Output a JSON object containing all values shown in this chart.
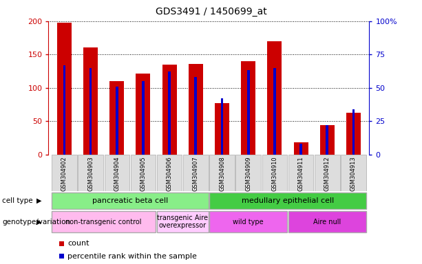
{
  "title": "GDS3491 / 1450699_at",
  "samples": [
    "GSM304902",
    "GSM304903",
    "GSM304904",
    "GSM304905",
    "GSM304906",
    "GSM304907",
    "GSM304908",
    "GSM304909",
    "GSM304910",
    "GSM304911",
    "GSM304912",
    "GSM304913"
  ],
  "counts": [
    198,
    161,
    110,
    121,
    135,
    136,
    77,
    140,
    170,
    18,
    44,
    63
  ],
  "percentiles": [
    67,
    65,
    51,
    55,
    62,
    58,
    42,
    63,
    65,
    8,
    22,
    34
  ],
  "bar_color": "#cc0000",
  "pct_color": "#0000cc",
  "ylim_left": [
    0,
    200
  ],
  "ylim_right": [
    0,
    100
  ],
  "yticks_left": [
    0,
    50,
    100,
    150,
    200
  ],
  "yticks_right": [
    0,
    25,
    50,
    75,
    100
  ],
  "ytick_labels_right": [
    "0",
    "25",
    "50",
    "75",
    "100%"
  ],
  "cell_type_groups": [
    {
      "label": "pancreatic beta cell",
      "start": 0,
      "end": 6,
      "color": "#88ee88"
    },
    {
      "label": "medullary epithelial cell",
      "start": 6,
      "end": 12,
      "color": "#44cc44"
    }
  ],
  "genotype_groups": [
    {
      "label": "non-transgenic control",
      "start": 0,
      "end": 4,
      "color": "#ffbbee"
    },
    {
      "label": "transgenic Aire\noverexpressor",
      "start": 4,
      "end": 6,
      "color": "#ffccff"
    },
    {
      "label": "wild type",
      "start": 6,
      "end": 9,
      "color": "#ee66ee"
    },
    {
      "label": "Aire null",
      "start": 9,
      "end": 12,
      "color": "#dd44dd"
    }
  ],
  "legend_count_label": "count",
  "legend_pct_label": "percentile rank within the sample",
  "cell_type_label": "cell type",
  "genotype_label": "genotype/variation",
  "bg_color": "#ffffff",
  "tick_color_left": "#cc0000",
  "tick_color_right": "#0000cc",
  "bar_width": 0.55
}
